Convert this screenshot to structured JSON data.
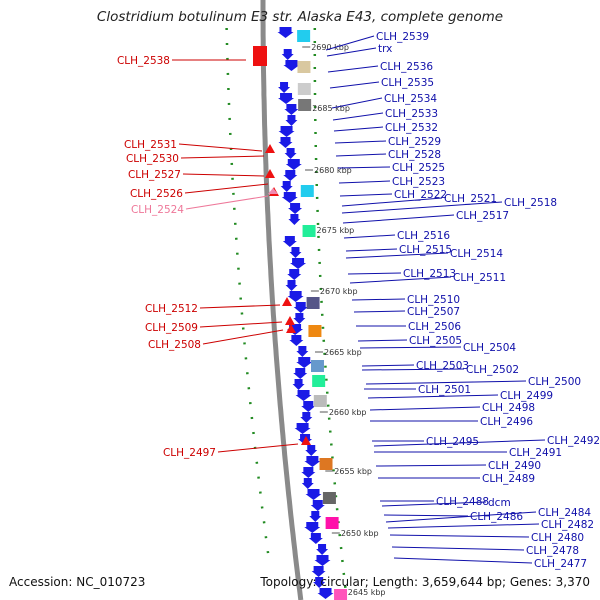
{
  "title": "Clostridium botulinum E3 str. Alaska E43, complete genome",
  "footer": {
    "accession": "Accession: NC_010723",
    "info": "Topology: circular; Length: 3,659,644 bp; Genes: 3,370"
  },
  "colors": {
    "forward_gene": "#1a1ae6",
    "reverse_gene": "#ee1111",
    "pseudo_gene": "#f08ab0",
    "forward_label": "#1010aa",
    "reverse_label": "#cc0000",
    "pseudo_label": "#ee7799",
    "gc_track": "#228b22",
    "backbone": "#8a8a8a"
  },
  "scale_labels": [
    "2690 kbp",
    "2685 kbp",
    "2680 kbp",
    "2675 kbp",
    "2670 kbp",
    "2665 kbp",
    "2660 kbp",
    "2655 kbp",
    "2650 kbp",
    "2645 kbp"
  ],
  "forward_labels": [
    "CLH_2539",
    "trx",
    "CLH_2536",
    "CLH_2535",
    "CLH_2534",
    "CLH_2533",
    "CLH_2532",
    "CLH_2529",
    "CLH_2528",
    "CLH_2525",
    "CLH_2523",
    "CLH_2522",
    "CLH_2521",
    "CLH_2518",
    "CLH_2517",
    "CLH_2516",
    "CLH_2515",
    "CLH_2514",
    "CLH_2513",
    "CLH_2511",
    "CLH_2510",
    "CLH_2507",
    "CLH_2506",
    "CLH_2505",
    "CLH_2504",
    "CLH_2503",
    "CLH_2502",
    "CLH_2501",
    "CLH_2500",
    "CLH_2499",
    "CLH_2498",
    "CLH_2496",
    "CLH_2495",
    "CLH_2492",
    "CLH_2491",
    "CLH_2490",
    "CLH_2489",
    "CLH_2488",
    "dcm",
    "CLH_2486",
    "CLH_2484",
    "CLH_2482",
    "CLH_2480",
    "CLH_2478",
    "CLH_2477"
  ],
  "reverse_labels": [
    "CLH_2538",
    "CLH_2531",
    "CLH_2530",
    "CLH_2527",
    "CLH_2526",
    "CLH_2512",
    "CLH_2509",
    "CLH_2508",
    "CLH_2497"
  ],
  "pseudo_labels": [
    "CLH_2524"
  ]
}
